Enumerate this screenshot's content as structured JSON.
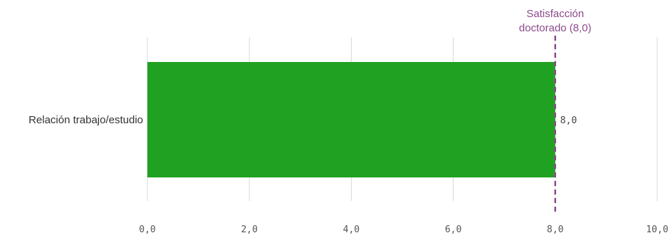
{
  "chart_data": {
    "type": "bar",
    "orientation": "horizontal",
    "categories": [
      "Relación trabajo/estudio"
    ],
    "values": [
      8.0
    ],
    "value_labels": [
      "8,0"
    ],
    "xlim": [
      0,
      10
    ],
    "x_ticks": [
      0,
      2,
      4,
      6,
      8,
      10
    ],
    "x_tick_labels": [
      "0,0",
      "2,0",
      "4,0",
      "6,0",
      "8,0",
      "10,0"
    ],
    "grid": true,
    "bar_color": "#21a121",
    "reference_line": {
      "value": 8.0,
      "label_lines": [
        "Satisfacción",
        "doctorado (8,0)"
      ],
      "color": "#8b4a8b",
      "style": "dashed"
    }
  }
}
